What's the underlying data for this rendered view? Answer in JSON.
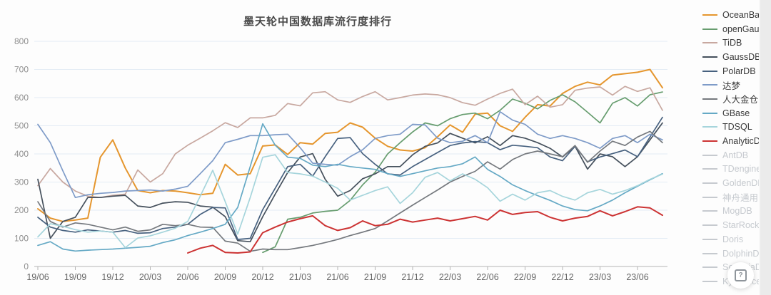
{
  "page": {
    "right_strip": true
  },
  "help_button": {
    "icon_glyph": "?"
  },
  "chart_data": {
    "type": "line",
    "title": "墨天轮中国数据库流行度排行",
    "xlabel": "",
    "ylabel": "",
    "ylim": [
      0,
      800
    ],
    "yticks": [
      0,
      100,
      200,
      300,
      400,
      500,
      600,
      700,
      800
    ],
    "grid": "horizontal",
    "legend_position": "right",
    "x_tick_labels": [
      "19/06",
      "19/09",
      "19/12",
      "20/03",
      "20/06",
      "20/09",
      "20/12",
      "21/03",
      "21/06",
      "21/09",
      "21/12",
      "22/03",
      "22/06",
      "22/09",
      "22/12",
      "23/03",
      "23/06"
    ],
    "x": [
      "19/06",
      "19/07",
      "19/08",
      "19/09",
      "19/10",
      "19/11",
      "19/12",
      "20/01",
      "20/02",
      "20/03",
      "20/04",
      "20/05",
      "20/06",
      "20/07",
      "20/08",
      "20/09",
      "20/10",
      "20/11",
      "20/12",
      "21/01",
      "21/02",
      "21/03",
      "21/04",
      "21/05",
      "21/06",
      "21/07",
      "21/08",
      "21/09",
      "21/10",
      "21/11",
      "21/12",
      "22/01",
      "22/02",
      "22/03",
      "22/04",
      "22/05",
      "22/06",
      "22/07",
      "22/08",
      "22/09",
      "22/10",
      "22/11",
      "22/12",
      "23/01",
      "23/02",
      "23/03",
      "23/04",
      "23/05",
      "23/06",
      "23/07",
      "23/08"
    ],
    "series": [
      {
        "name": "OceanBase",
        "color": "#E5962E",
        "values": [
          205,
          172,
          160,
          165,
          172,
          388,
          450,
          350,
          270,
          262,
          270,
          268,
          262,
          255,
          260,
          363,
          325,
          330,
          428,
          432,
          398,
          440,
          435,
          473,
          477,
          510,
          495,
          456,
          427,
          414,
          410,
          422,
          461,
          503,
          477,
          541,
          545,
          500,
          480,
          530,
          575,
          570,
          615,
          640,
          655,
          645,
          680,
          685,
          690,
          700,
          635
        ]
      },
      {
        "name": "openGauss",
        "color": "#679D6F",
        "values": [
          null,
          null,
          null,
          null,
          null,
          null,
          null,
          null,
          null,
          null,
          null,
          null,
          null,
          null,
          null,
          null,
          null,
          null,
          50,
          70,
          168,
          175,
          190,
          196,
          200,
          235,
          290,
          335,
          400,
          440,
          478,
          510,
          500,
          525,
          540,
          545,
          525,
          555,
          595,
          580,
          560,
          590,
          610,
          585,
          548,
          510,
          580,
          600,
          570,
          610,
          620
        ]
      },
      {
        "name": "TiDB",
        "color": "#C8A8A0",
        "values": [
          287,
          348,
          300,
          268,
          250,
          245,
          253,
          257,
          343,
          300,
          330,
          400,
          431,
          456,
          482,
          511,
          494,
          528,
          528,
          537,
          579,
          571,
          617,
          621,
          592,
          583,
          604,
          621,
          592,
          600,
          609,
          613,
          610,
          600,
          582,
          573,
          595,
          615,
          630,
          575,
          605,
          566,
          575,
          626,
          634,
          638,
          609,
          640,
          622,
          635,
          555
        ]
      },
      {
        "name": "GaussDB",
        "color": "#45505C",
        "values": [
          310,
          100,
          160,
          175,
          245,
          245,
          250,
          253,
          215,
          210,
          225,
          230,
          228,
          215,
          211,
          177,
          92,
          88,
          177,
          257,
          334,
          389,
          401,
          310,
          250,
          270,
          312,
          329,
          355,
          355,
          397,
          427,
          439,
          473,
          456,
          439,
          461,
          430,
          465,
          456,
          440,
          420,
          389,
          427,
          346,
          400,
          390,
          355,
          390,
          450,
          510
        ]
      },
      {
        "name": "PolarDB",
        "color": "#47617F",
        "values": [
          175,
          140,
          128,
          122,
          130,
          126,
          122,
          128,
          118,
          120,
          135,
          140,
          150,
          185,
          210,
          208,
          96,
          100,
          202,
          278,
          355,
          363,
          321,
          390,
          455,
          458,
          401,
          363,
          329,
          325,
          355,
          380,
          405,
          430,
          439,
          444,
          440,
          415,
          431,
          427,
          422,
          389,
          376,
          427,
          372,
          389,
          401,
          414,
          390,
          460,
          530
        ]
      },
      {
        "name": "达梦",
        "color": "#7E9BC8",
        "values": [
          505,
          440,
          340,
          245,
          255,
          260,
          263,
          268,
          270,
          272,
          268,
          275,
          285,
          330,
          376,
          440,
          452,
          465,
          465,
          468,
          470,
          422,
          367,
          363,
          360,
          390,
          415,
          455,
          465,
          470,
          505,
          503,
          456,
          440,
          445,
          465,
          440,
          550,
          520,
          505,
          470,
          455,
          465,
          455,
          440,
          420,
          455,
          465,
          440,
          470,
          450
        ]
      },
      {
        "name": "人大金仓",
        "color": "#75797E",
        "values": [
          230,
          160,
          140,
          155,
          150,
          140,
          130,
          140,
          125,
          130,
          150,
          145,
          150,
          140,
          139,
          90,
          83,
          54,
          62,
          60,
          60,
          67,
          75,
          85,
          96,
          110,
          122,
          135,
          162,
          190,
          218,
          245,
          272,
          300,
          320,
          338,
          372,
          346,
          380,
          400,
          410,
          400,
          390,
          430,
          370,
          410,
          445,
          430,
          460,
          480,
          440
        ]
      },
      {
        "name": "GBase",
        "color": "#65A9C5",
        "values": [
          75,
          88,
          62,
          55,
          58,
          60,
          62,
          65,
          68,
          72,
          85,
          95,
          110,
          122,
          135,
          150,
          210,
          355,
          507,
          431,
          388,
          384,
          360,
          355,
          363,
          355,
          350,
          345,
          330,
          320,
          330,
          340,
          350,
          355,
          365,
          389,
          345,
          320,
          290,
          270,
          252,
          235,
          215,
          202,
          198,
          215,
          236,
          262,
          285,
          308,
          330
        ]
      },
      {
        "name": "TDSQL",
        "color": "#A6D5DC",
        "values": [
          105,
          152,
          143,
          131,
          122,
          126,
          122,
          67,
          101,
          109,
          122,
          136,
          160,
          250,
          342,
          230,
          115,
          245,
          388,
          397,
          334,
          329,
          321,
          300,
          278,
          236,
          253,
          270,
          283,
          224,
          262,
          317,
          334,
          304,
          329,
          310,
          280,
          232,
          257,
          236,
          262,
          270,
          249,
          236,
          262,
          274,
          257,
          270,
          287,
          310,
          328
        ]
      },
      {
        "name": "AnalyticDB",
        "color": "#CC3333",
        "values": [
          null,
          null,
          null,
          null,
          null,
          null,
          null,
          null,
          null,
          null,
          null,
          null,
          48,
          65,
          75,
          50,
          48,
          52,
          120,
          140,
          158,
          170,
          180,
          145,
          128,
          138,
          162,
          145,
          150,
          168,
          158,
          165,
          172,
          162,
          170,
          178,
          165,
          200,
          185,
          192,
          195,
          175,
          162,
          172,
          178,
          198,
          180,
          195,
          212,
          208,
          182
        ]
      }
    ]
  },
  "legend": {
    "items": [
      {
        "label": "OceanBase",
        "color": "#E5962E",
        "active": true
      },
      {
        "label": "openGauss",
        "color": "#679D6F",
        "active": true
      },
      {
        "label": "TiDB",
        "color": "#C8A8A0",
        "active": true
      },
      {
        "label": "GaussDB",
        "color": "#45505C",
        "active": true
      },
      {
        "label": "PolarDB",
        "color": "#47617F",
        "active": true
      },
      {
        "label": "达梦",
        "color": "#7E9BC8",
        "active": true
      },
      {
        "label": "人大金仓",
        "color": "#75797E",
        "active": true
      },
      {
        "label": "GBase",
        "color": "#65A9C5",
        "active": true
      },
      {
        "label": "TDSQL",
        "color": "#A6D5DC",
        "active": true
      },
      {
        "label": "AnalyticDB",
        "color": "#CC3333",
        "active": true
      },
      {
        "label": "AntDB",
        "color": "#C6CACF",
        "active": false
      },
      {
        "label": "TDengine",
        "color": "#C6CACF",
        "active": false
      },
      {
        "label": "GoldenDB",
        "color": "#C6CACF",
        "active": false
      },
      {
        "label": "神舟通用",
        "color": "#C6CACF",
        "active": false
      },
      {
        "label": "MogDB",
        "color": "#C6CACF",
        "active": false
      },
      {
        "label": "StarRocks",
        "color": "#C6CACF",
        "active": false
      },
      {
        "label": "Doris",
        "color": "#C6CACF",
        "active": false
      },
      {
        "label": "DolphinDB",
        "color": "#C6CACF",
        "active": false
      },
      {
        "label": "SequoiaDB",
        "color": "#C6CACF",
        "active": false
      },
      {
        "label": "Kyligence",
        "color": "#C6CACF",
        "active": false
      }
    ]
  },
  "axis_style": {
    "label_color": "#666666",
    "ytick_color": "#8e8e8e",
    "grid_color": "#e4ecf5",
    "axis_color": "#b5b5b5"
  }
}
